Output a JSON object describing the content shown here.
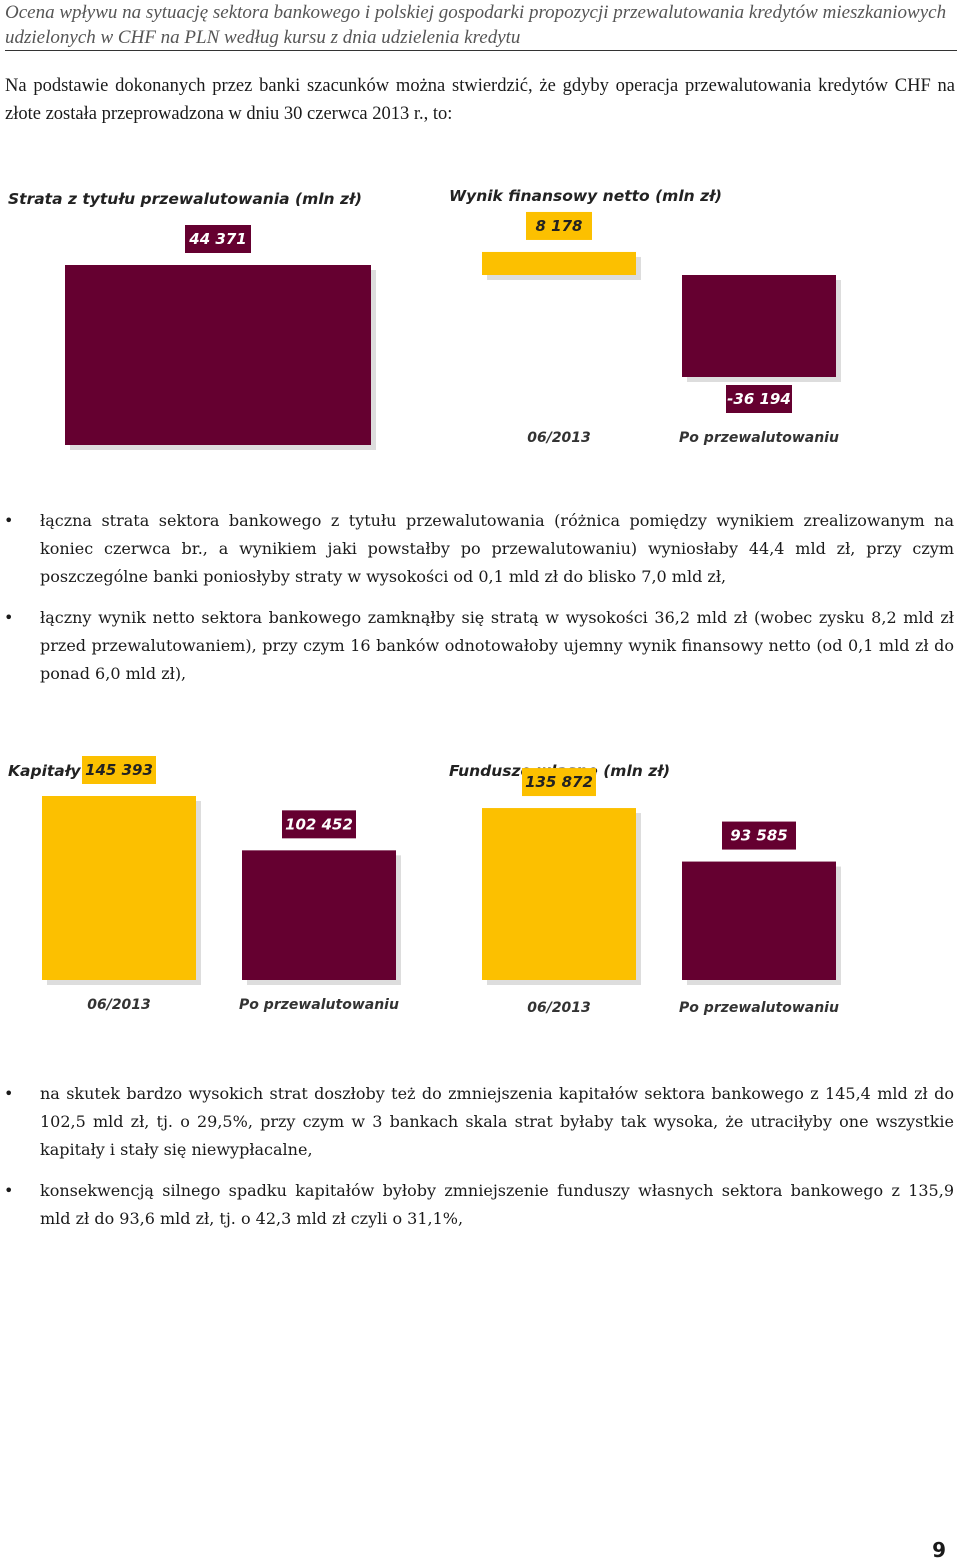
{
  "header": {
    "title": "Ocena wpływu na sytuację sektora bankowego i polskiej gospodarki propozycji przewalutowania kredytów mieszkaniowych udzielonych w CHF na PLN według kursu z dnia udzielenia kredytu"
  },
  "intro": "Na podstawie dokonanych przez banki szacunków można stwierdzić, że gdyby operacja przewalutowania kredytów CHF na złote została przeprowadzona w dniu 30 czerwca 2013 r., to:",
  "colors": {
    "dark_bar": "#650030",
    "yellow_bar": "#fcc000",
    "dark_label_bg": "#650030",
    "dark_label_text": "#ffffff",
    "yellow_label_bg": "#fcc000",
    "yellow_label_text": "#222222"
  },
  "chart_data": [
    {
      "type": "bar",
      "title": "Strata  z tytułu przewalutowania (mln zł)",
      "categories": [
        ""
      ],
      "values": [
        44371
      ],
      "value_labels": [
        "44 371"
      ],
      "bar_colors": [
        "dark"
      ]
    },
    {
      "type": "bar",
      "title": "Wynik finansowy netto (mln zł)",
      "categories": [
        "06/2013",
        "Po przewalutowaniu"
      ],
      "values": [
        8178,
        -36194
      ],
      "value_labels": [
        "8 178",
        "-36 194"
      ],
      "bar_colors": [
        "yellow",
        "dark"
      ]
    },
    {
      "type": "bar",
      "title": "Kapitały (mln zł)",
      "categories": [
        "06/2013",
        "Po przewalutowaniu"
      ],
      "values": [
        145393,
        102452
      ],
      "value_labels": [
        "145 393",
        "102 452"
      ],
      "bar_colors": [
        "yellow",
        "dark"
      ]
    },
    {
      "type": "bar",
      "title": "Fundusze własne (mln zł)",
      "categories": [
        "06/2013",
        "Po przewalutowaniu"
      ],
      "values": [
        135872,
        93585
      ],
      "value_labels": [
        "135 872",
        "93 585"
      ],
      "bar_colors": [
        "yellow",
        "dark"
      ]
    }
  ],
  "bullets_top": [
    "łączna strata sektora bankowego z tytułu przewalutowania (różnica pomiędzy wynikiem zrealizowanym na koniec czerwca br., a wynikiem jaki powstałby po przewalutowaniu) wyniosłaby 44,4 mld zł, przy czym poszczególne banki poniosłyby straty w wysokości od 0,1 mld zł do blisko 7,0 mld zł,",
    "łączny wynik netto sektora bankowego zamknąłby się stratą w wysokości 36,2 mld zł (wobec zysku 8,2 mld zł przed przewalutowaniem), przy czym 16 banków odnotowałoby ujemny wynik finansowy netto (od 0,1 mld zł do ponad 6,0 mld zł),"
  ],
  "bullets_bottom": [
    "na skutek bardzo wysokich strat doszłoby też do zmniejszenia kapitałów sektora bankowego z 145,4 mld zł do 102,5 mld zł, tj. o 29,5%, przy czym w 3 bankach skala strat byłaby tak wysoka, że utraciłyby one wszystkie kapitały i stały się niewypłacalne,",
    "konsekwencją silnego spadku kapitałów byłoby zmniejszenie funduszy własnych sektora bankowego z 135,9 mld zł do 93,6 mld zł, tj. o 42,3 mld zł czyli o 31,1%,"
  ],
  "page_number": "9"
}
